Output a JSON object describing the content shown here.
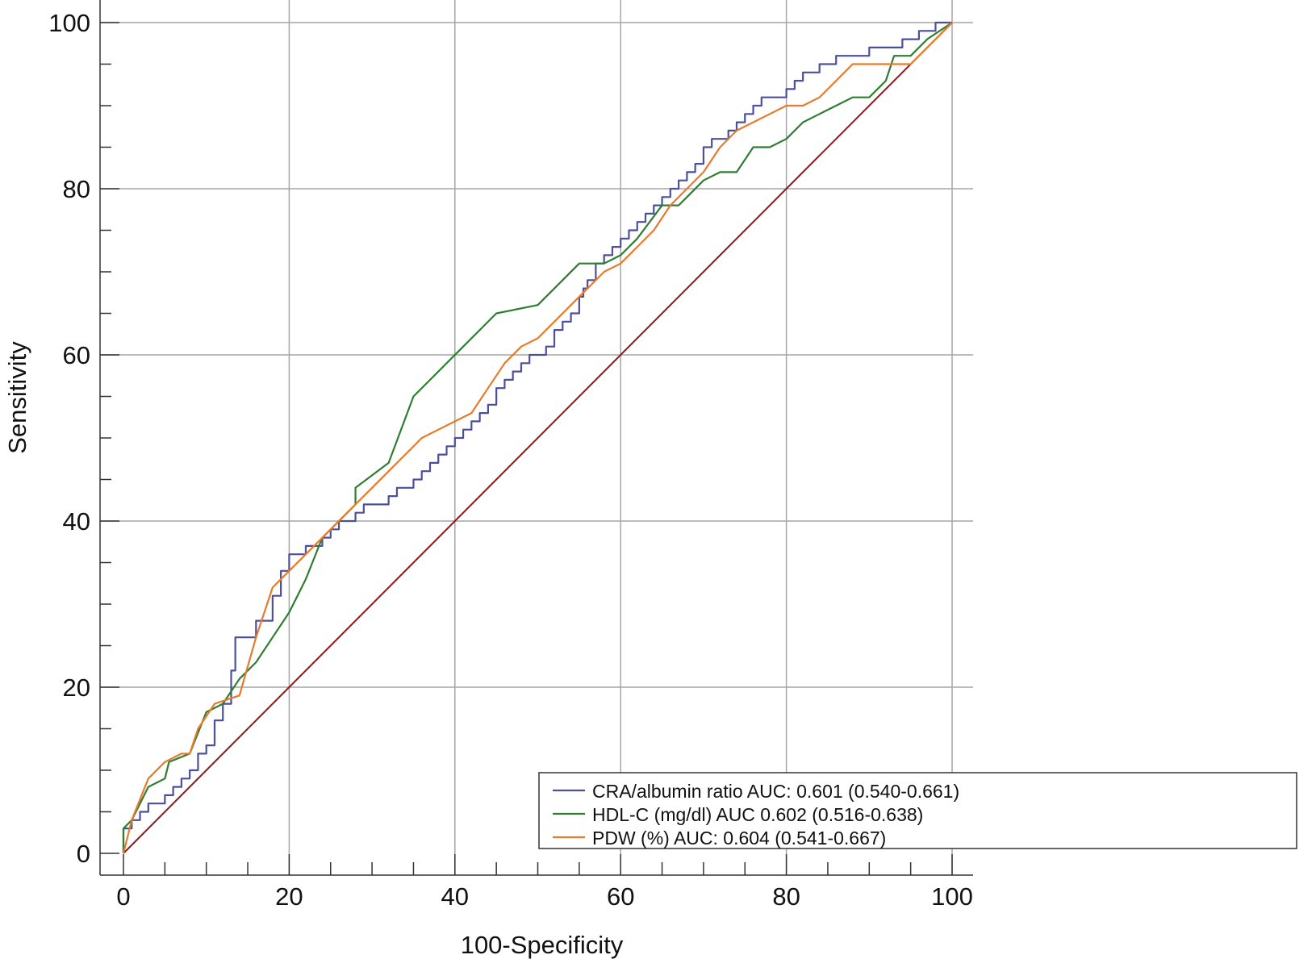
{
  "chart_data": {
    "type": "line",
    "title": "",
    "xlabel": "100-Specificity",
    "ylabel": "Sensitivity",
    "xlim": [
      0,
      100
    ],
    "ylim": [
      0,
      100
    ],
    "x_ticks": [
      "0",
      "20",
      "40",
      "60",
      "80",
      "100"
    ],
    "y_ticks": [
      "0",
      "20",
      "40",
      "60",
      "80",
      "100"
    ],
    "grid": true,
    "legend_position": "bottom-right",
    "series": [
      {
        "name": "CRA/albumin  ratio AUC: 0.601 (0.540-0.661)",
        "color": "#4b4f9c",
        "step": true,
        "x": [
          0,
          0,
          1,
          1,
          2,
          2,
          3,
          3,
          4,
          5,
          6,
          7,
          8,
          9,
          10,
          11,
          12,
          13,
          13.5,
          14,
          16,
          16,
          18,
          18,
          19,
          19,
          20,
          20,
          22,
          22,
          24,
          24,
          25,
          26,
          26,
          28,
          28,
          29,
          31,
          32,
          33,
          34,
          35,
          36,
          37,
          38,
          39,
          40,
          41,
          42,
          43,
          44,
          45,
          46,
          47,
          48,
          49,
          51,
          52,
          53,
          54,
          55,
          55.5,
          56,
          57,
          58,
          59,
          60,
          61,
          62,
          63,
          64,
          65,
          66,
          67,
          68,
          69,
          70,
          71,
          72,
          73,
          74,
          75,
          76,
          77,
          79,
          80,
          81,
          82,
          84,
          86,
          88,
          90,
          92,
          94,
          95,
          96,
          97,
          98,
          99,
          100
        ],
        "y": [
          0,
          3,
          3,
          4,
          4,
          5,
          5,
          6,
          6,
          7,
          8,
          9,
          10,
          12,
          13,
          16,
          18,
          22,
          26,
          26,
          28,
          28,
          31,
          31,
          34,
          34,
          36,
          36,
          37,
          37,
          38,
          38,
          39,
          40,
          40,
          41,
          41,
          42,
          42,
          43,
          44,
          44,
          45,
          46,
          47,
          48,
          49,
          50,
          51,
          52,
          53,
          54,
          56,
          57,
          58,
          59,
          60,
          61,
          63,
          64,
          65,
          67,
          68,
          69,
          71,
          72,
          73,
          74,
          75,
          76,
          77,
          78,
          79,
          80,
          81,
          82,
          83,
          85,
          86,
          86,
          87,
          88,
          89,
          90,
          91,
          91,
          92,
          93,
          94,
          95,
          96,
          96,
          97,
          97,
          98,
          98,
          99,
          99,
          100,
          100,
          100
        ]
      },
      {
        "name": "HDL-C (mg/dl) AUC 0.602 (0.516-0.638)",
        "color": "#2e7d32",
        "step": false,
        "x": [
          0,
          0,
          1,
          2,
          3,
          5,
          5.5,
          8,
          10,
          12,
          14,
          16,
          18,
          20,
          21,
          22,
          24,
          26,
          28,
          28,
          32,
          35,
          38,
          41,
          43,
          45,
          50,
          55,
          58,
          60,
          62,
          65,
          67,
          68,
          70,
          72,
          74,
          76,
          78,
          80,
          82,
          84,
          86,
          88,
          90,
          92,
          93,
          95,
          97,
          100
        ],
        "y": [
          0,
          3,
          4,
          6,
          8,
          9,
          11,
          12,
          17,
          18,
          21,
          23,
          26,
          29,
          31,
          33,
          38,
          40,
          42,
          44,
          47,
          55,
          58,
          61,
          63,
          65,
          66,
          71,
          71,
          72,
          74,
          78,
          78,
          79,
          81,
          82,
          82,
          85,
          85,
          86,
          88,
          89,
          90,
          91,
          91,
          93,
          96,
          96,
          98,
          100
        ]
      },
      {
        "name": "PDW (%) AUC: 0.604 (0.541-0.667)",
        "color": "#e77b2c",
        "step": false,
        "x": [
          0,
          0.5,
          1,
          3,
          5,
          7,
          8,
          9,
          11,
          14,
          16,
          18,
          20,
          22,
          24,
          26,
          28,
          30,
          32,
          34,
          36,
          38,
          40,
          42,
          44,
          46,
          48,
          50,
          52,
          54,
          56,
          58,
          60,
          62,
          64,
          66,
          68,
          70,
          72,
          74,
          76,
          78,
          80,
          82,
          84,
          86,
          88,
          90,
          92,
          94,
          95,
          96,
          97,
          98,
          99,
          100
        ],
        "y": [
          0,
          2,
          4,
          9,
          11,
          12,
          12,
          15,
          18,
          19,
          26,
          32,
          34,
          36,
          38,
          40,
          42,
          44,
          46,
          48,
          50,
          51,
          52,
          53,
          56,
          59,
          61,
          62,
          64,
          66,
          68,
          70,
          71,
          73,
          75,
          78,
          80,
          82,
          85,
          87,
          88,
          89,
          90,
          90,
          91,
          93,
          95,
          95,
          95,
          95,
          95,
          96,
          97,
          98,
          99,
          100
        ]
      },
      {
        "name": "",
        "color": "#8b1a1a",
        "step": false,
        "x": [
          0,
          100
        ],
        "y": [
          0,
          100
        ]
      }
    ]
  }
}
